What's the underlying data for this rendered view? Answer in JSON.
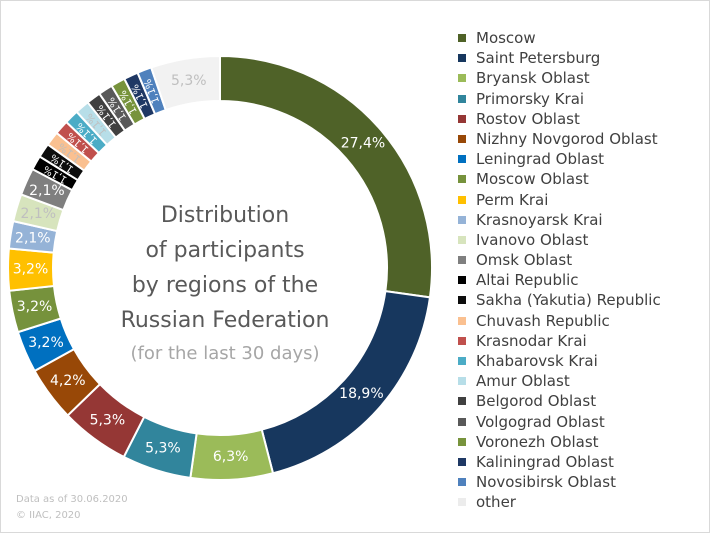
{
  "chart_data": {
    "type": "pie",
    "title": "Distribution of participants by regions of the Russian Federation",
    "subtitle": "(for the last 30 days)",
    "style": "donut",
    "legend_position": "right",
    "slices": [
      {
        "name": "Moscow",
        "value": 27.4,
        "label": "27,4%",
        "color": "#4f6228"
      },
      {
        "name": "Saint Petersburg",
        "value": 18.9,
        "label": "18,9%",
        "color": "#17375e"
      },
      {
        "name": "Bryansk Oblast",
        "value": 6.3,
        "label": "6,3%",
        "color": "#9bbb59"
      },
      {
        "name": "Primorsky Krai",
        "value": 5.3,
        "label": "5,3%",
        "color": "#31859c"
      },
      {
        "name": "Rostov Oblast",
        "value": 5.3,
        "label": "5,3%",
        "color": "#953735"
      },
      {
        "name": "Nizhny Novgorod Oblast",
        "value": 4.2,
        "label": "4,2%",
        "color": "#984807"
      },
      {
        "name": "Leningrad Oblast",
        "value": 3.2,
        "label": "3,2%",
        "color": "#0070c0"
      },
      {
        "name": "Moscow Oblast",
        "value": 3.2,
        "label": "3,2%",
        "color": "#76923c"
      },
      {
        "name": "Perm Krai",
        "value": 3.2,
        "label": "3,2%",
        "color": "#ffc000"
      },
      {
        "name": "Krasnoyarsk Krai",
        "value": 2.1,
        "label": "2,1%",
        "color": "#95b3d7"
      },
      {
        "name": "Ivanovo Oblast",
        "value": 2.1,
        "label": "2,1%",
        "color": "#d7e4bd"
      },
      {
        "name": "Omsk Oblast",
        "value": 2.1,
        "label": "2,1%",
        "color": "#7f7f7f"
      },
      {
        "name": "Altai Republic",
        "value": 1.1,
        "label": "1,1%",
        "color": "#000000"
      },
      {
        "name": "Sakha (Yakutia) Republic",
        "value": 1.1,
        "label": "1,1%",
        "color": "#0d0d0d"
      },
      {
        "name": "Chuvash Republic",
        "value": 1.1,
        "label": "1,1%",
        "color": "#fac090"
      },
      {
        "name": "Krasnodar Krai",
        "value": 1.1,
        "label": "1,1%",
        "color": "#c0504d"
      },
      {
        "name": "Khabarovsk Krai",
        "value": 1.1,
        "label": "1,1%",
        "color": "#4bacc6"
      },
      {
        "name": "Amur Oblast",
        "value": 1.1,
        "label": "1,1%",
        "color": "#b7dee8"
      },
      {
        "name": "Belgorod Oblast",
        "value": 1.1,
        "label": "1,1%",
        "color": "#404040"
      },
      {
        "name": "Volgograd Oblast",
        "value": 1.1,
        "label": "1,1%",
        "color": "#595959"
      },
      {
        "name": "Voronezh Oblast",
        "value": 1.1,
        "label": "1,1%",
        "color": "#77933c"
      },
      {
        "name": "Kaliningrad Oblast",
        "value": 1.1,
        "label": "1,1%",
        "color": "#1f3864"
      },
      {
        "name": "Novosibirsk Oblast",
        "value": 1.1,
        "label": "1,1%",
        "color": "#4f81bd"
      },
      {
        "name": "other",
        "value": 5.3,
        "label": "5,3%",
        "color": "#f2f2f2"
      }
    ]
  },
  "center_text": {
    "title_line1": "Distribution",
    "title_line2": "of participants",
    "title_line3": "by regions of the",
    "title_line4": "Russian Federation",
    "subtitle": "(for the last 30 days)"
  },
  "footer": {
    "date_note": "Data as of 30.06.2020",
    "copyright": "© IIAC, 2020"
  }
}
